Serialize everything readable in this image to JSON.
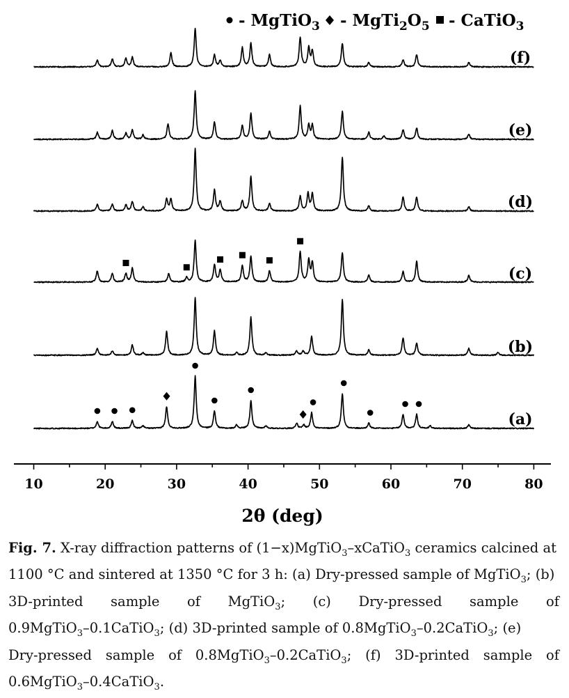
{
  "chart_data": {
    "type": "line",
    "title": "",
    "xlabel": "2θ (deg)",
    "ylabel": "",
    "xlim": [
      10,
      80
    ],
    "xticks": [
      10,
      20,
      30,
      40,
      50,
      60,
      70,
      80
    ],
    "tick_labels": [
      "10",
      "20",
      "30",
      "40",
      "50",
      "60",
      "70",
      "80"
    ],
    "legend": {
      "placement": "top",
      "entries": [
        {
          "marker": "circle",
          "label": "MgTiO3"
        },
        {
          "marker": "diamond",
          "label": "MgTi2O5"
        },
        {
          "marker": "square",
          "label": "CaTiO3"
        }
      ]
    },
    "series": [
      {
        "name": "(a)",
        "peaks": [
          [
            18.9,
            0.08
          ],
          [
            21.0,
            0.08
          ],
          [
            23.8,
            0.09
          ],
          [
            25.3,
            0.03
          ],
          [
            28.6,
            0.25
          ],
          [
            32.6,
            0.6
          ],
          [
            35.3,
            0.2
          ],
          [
            38.4,
            0.04
          ],
          [
            40.4,
            0.32
          ],
          [
            42.5,
            0.03
          ],
          [
            46.8,
            0.06
          ],
          [
            47.8,
            0.04
          ],
          [
            48.9,
            0.18
          ],
          [
            53.2,
            0.4
          ],
          [
            56.9,
            0.06
          ],
          [
            61.7,
            0.16
          ],
          [
            63.6,
            0.16
          ],
          [
            65.5,
            0.03
          ],
          [
            70.9,
            0.04
          ]
        ],
        "markers": [
          {
            "type": "circle",
            "x": 18.9
          },
          {
            "type": "circle",
            "x": 21.3
          },
          {
            "type": "circle",
            "x": 23.8
          },
          {
            "type": "diamond",
            "x": 28.6
          },
          {
            "type": "circle",
            "x": 32.6
          },
          {
            "type": "circle",
            "x": 35.3
          },
          {
            "type": "circle",
            "x": 40.4
          },
          {
            "type": "diamond",
            "x": 47.7
          },
          {
            "type": "circle",
            "x": 49.1
          },
          {
            "type": "circle",
            "x": 53.4
          },
          {
            "type": "circle",
            "x": 57.1
          },
          {
            "type": "circle",
            "x": 62.0
          },
          {
            "type": "circle",
            "x": 63.9
          }
        ]
      },
      {
        "name": "(b)",
        "peaks": [
          [
            18.9,
            0.08
          ],
          [
            21.0,
            0.05
          ],
          [
            23.8,
            0.12
          ],
          [
            25.3,
            0.03
          ],
          [
            28.6,
            0.28
          ],
          [
            32.6,
            0.66
          ],
          [
            35.3,
            0.28
          ],
          [
            38.4,
            0.03
          ],
          [
            40.4,
            0.44
          ],
          [
            42.5,
            0.03
          ],
          [
            46.8,
            0.05
          ],
          [
            47.7,
            0.05
          ],
          [
            48.9,
            0.22
          ],
          [
            53.2,
            0.64
          ],
          [
            56.9,
            0.06
          ],
          [
            61.7,
            0.2
          ],
          [
            63.6,
            0.14
          ],
          [
            70.9,
            0.08
          ],
          [
            75.0,
            0.03
          ]
        ],
        "markers": []
      },
      {
        "name": "(c)",
        "peaks": [
          [
            18.9,
            0.13
          ],
          [
            21.0,
            0.1
          ],
          [
            22.9,
            0.1
          ],
          [
            23.8,
            0.16
          ],
          [
            28.9,
            0.1
          ],
          [
            31.4,
            0.05
          ],
          [
            32.6,
            0.48
          ],
          [
            35.3,
            0.2
          ],
          [
            36.1,
            0.14
          ],
          [
            39.2,
            0.19
          ],
          [
            40.4,
            0.3
          ],
          [
            43.0,
            0.13
          ],
          [
            47.3,
            0.35
          ],
          [
            48.5,
            0.25
          ],
          [
            49.0,
            0.22
          ],
          [
            53.2,
            0.34
          ],
          [
            56.9,
            0.08
          ],
          [
            61.7,
            0.12
          ],
          [
            63.6,
            0.24
          ],
          [
            70.9,
            0.08
          ]
        ],
        "markers": [
          {
            "type": "square",
            "x": 22.9
          },
          {
            "type": "square",
            "x": 31.4
          },
          {
            "type": "square",
            "x": 36.1
          },
          {
            "type": "square",
            "x": 39.2
          },
          {
            "type": "square",
            "x": 43.0
          },
          {
            "type": "square",
            "x": 47.3
          }
        ]
      },
      {
        "name": "(d)",
        "peaks": [
          [
            18.9,
            0.08
          ],
          [
            21.0,
            0.08
          ],
          [
            22.9,
            0.07
          ],
          [
            23.8,
            0.11
          ],
          [
            25.3,
            0.05
          ],
          [
            28.6,
            0.14
          ],
          [
            29.2,
            0.14
          ],
          [
            32.6,
            0.72
          ],
          [
            35.3,
            0.24
          ],
          [
            36.1,
            0.11
          ],
          [
            39.2,
            0.12
          ],
          [
            40.4,
            0.4
          ],
          [
            43.0,
            0.09
          ],
          [
            47.3,
            0.17
          ],
          [
            48.4,
            0.2
          ],
          [
            49.0,
            0.2
          ],
          [
            53.2,
            0.62
          ],
          [
            56.9,
            0.06
          ],
          [
            61.7,
            0.16
          ],
          [
            63.6,
            0.16
          ],
          [
            70.9,
            0.05
          ]
        ],
        "markers": []
      },
      {
        "name": "(e)",
        "peaks": [
          [
            18.9,
            0.08
          ],
          [
            21.0,
            0.1
          ],
          [
            22.9,
            0.07
          ],
          [
            23.8,
            0.11
          ],
          [
            25.3,
            0.05
          ],
          [
            28.8,
            0.18
          ],
          [
            32.6,
            0.56
          ],
          [
            35.3,
            0.2
          ],
          [
            39.2,
            0.16
          ],
          [
            40.4,
            0.3
          ],
          [
            43.0,
            0.09
          ],
          [
            47.3,
            0.38
          ],
          [
            48.5,
            0.16
          ],
          [
            49.0,
            0.16
          ],
          [
            53.2,
            0.32
          ],
          [
            56.9,
            0.08
          ],
          [
            59.0,
            0.04
          ],
          [
            61.7,
            0.11
          ],
          [
            63.6,
            0.13
          ],
          [
            70.9,
            0.06
          ]
        ],
        "markers": []
      },
      {
        "name": "(f)",
        "peaks": [
          [
            18.9,
            0.08
          ],
          [
            21.0,
            0.09
          ],
          [
            22.9,
            0.1
          ],
          [
            23.8,
            0.11
          ],
          [
            29.2,
            0.16
          ],
          [
            32.6,
            0.44
          ],
          [
            35.3,
            0.14
          ],
          [
            36.1,
            0.07
          ],
          [
            39.2,
            0.22
          ],
          [
            40.4,
            0.27
          ],
          [
            43.0,
            0.14
          ],
          [
            47.3,
            0.34
          ],
          [
            48.5,
            0.22
          ],
          [
            49.0,
            0.18
          ],
          [
            53.2,
            0.27
          ],
          [
            56.9,
            0.05
          ],
          [
            61.7,
            0.08
          ],
          [
            63.6,
            0.14
          ],
          [
            70.9,
            0.05
          ]
        ],
        "markers": []
      }
    ]
  },
  "caption": {
    "fig_label": "Fig. 7.",
    "line1_text": "X-ray diffraction patterns of (1−x)MgTiO3–xCaTiO3 ceramics calcined at",
    "line2": "1100 °C and sintered at 1350 °C for 3 h: (a) Dry-pressed sample of MgTiO3; (b)",
    "line3_words": [
      "3D-printed",
      "sample",
      "of",
      "MgTiO3;",
      "(c)",
      "Dry-pressed",
      "sample",
      "of"
    ],
    "line4": "0.9MgTiO3–0.1CaTiO3; (d) 3D-printed sample of 0.8MgTiO3–0.2CaTiO3; (e)",
    "line5_words": [
      "Dry-pressed",
      "sample",
      "of",
      "0.8MgTiO3–0.2CaTiO3;",
      "(f)",
      "3D-printed",
      "sample",
      "of"
    ],
    "line6": "0.6MgTiO3–0.4CaTiO3."
  }
}
